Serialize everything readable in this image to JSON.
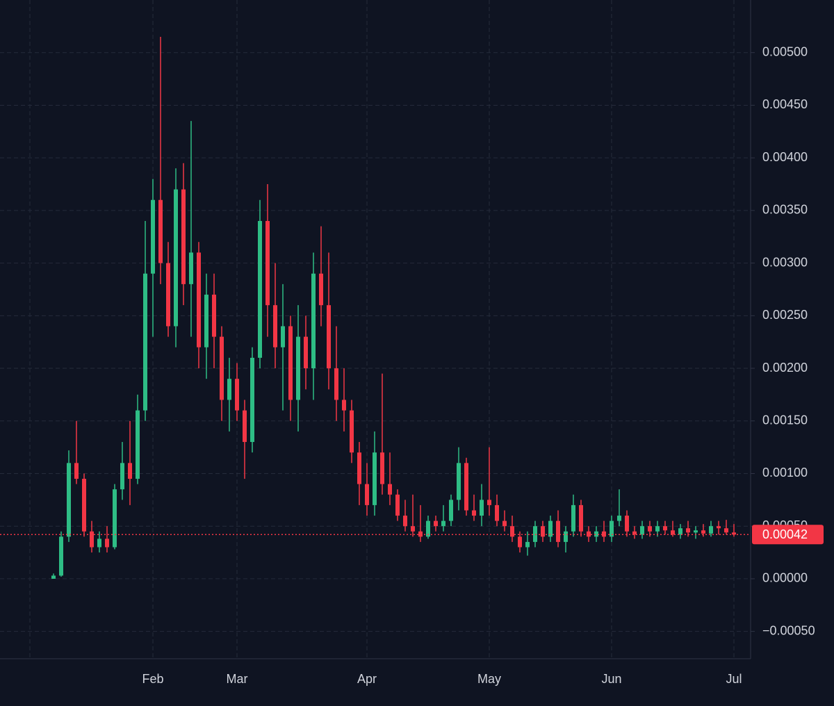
{
  "chart_data": {
    "type": "candlestick",
    "categories": [
      null,
      null,
      null,
      null,
      null,
      null,
      null,
      null,
      null,
      null,
      null,
      null,
      null,
      "Feb",
      null,
      null,
      null,
      null,
      null,
      null,
      null,
      null,
      null,
      null,
      "Mar",
      null,
      null,
      null,
      null,
      null,
      null,
      null,
      null,
      null,
      null,
      null,
      null,
      null,
      null,
      null,
      null,
      "Apr",
      null,
      null,
      null,
      null,
      null,
      null,
      null,
      null,
      null,
      null,
      null,
      null,
      null,
      null,
      null,
      "May",
      null,
      null,
      null,
      null,
      null,
      null,
      null,
      null,
      null,
      null,
      null,
      null,
      null,
      null,
      null,
      "Jun",
      null,
      null,
      null,
      null,
      null,
      null,
      null,
      null,
      null,
      null,
      null,
      null,
      null,
      null,
      null,
      "Jul"
    ],
    "open": [
      0,
      3e-05,
      0.0004,
      0.0011,
      0.00095,
      0.00045,
      0.0003,
      0.00038,
      0.0003,
      0.00085,
      0.0011,
      0.00095,
      0.0016,
      0.0029,
      0.0036,
      0.003,
      0.0024,
      0.0037,
      0.0028,
      0.0031,
      0.0022,
      0.0027,
      0.0023,
      0.0017,
      0.0019,
      0.0016,
      0.0013,
      0.0021,
      0.0034,
      0.0026,
      0.0022,
      0.0024,
      0.0017,
      0.0023,
      0.002,
      0.0029,
      0.0026,
      0.002,
      0.0017,
      0.0016,
      0.0012,
      0.0009,
      0.0007,
      0.0012,
      0.0009,
      0.0008,
      0.0006,
      0.0005,
      0.00045,
      0.0004,
      0.00055,
      0.0005,
      0.00055,
      0.00075,
      0.0011,
      0.00065,
      0.0006,
      0.00075,
      0.0007,
      0.00055,
      0.0005,
      0.0004,
      0.0003,
      0.00035,
      0.0005,
      0.0004,
      0.00055,
      0.00035,
      0.00045,
      0.0007,
      0.00045,
      0.0004,
      0.00045,
      0.0004,
      0.00055,
      0.0006,
      0.00045,
      0.00042,
      0.0005,
      0.00045,
      0.0005,
      0.00046,
      0.00042,
      0.00048,
      0.00044,
      0.00046,
      0.00043,
      0.0005,
      0.00048,
      0.00044
    ],
    "high": [
      5e-05,
      0.00045,
      0.00122,
      0.0015,
      0.001,
      0.00055,
      0.00045,
      0.0005,
      0.0009,
      0.0013,
      0.0015,
      0.00175,
      0.0034,
      0.0038,
      0.00515,
      0.0032,
      0.0039,
      0.00395,
      0.00435,
      0.0032,
      0.0029,
      0.0029,
      0.0024,
      0.0021,
      0.00205,
      0.0017,
      0.0022,
      0.0036,
      0.00375,
      0.003,
      0.0028,
      0.0025,
      0.0026,
      0.0025,
      0.0031,
      0.00335,
      0.0031,
      0.0024,
      0.002,
      0.0017,
      0.0013,
      0.0011,
      0.0014,
      0.00195,
      0.0012,
      0.00085,
      0.00075,
      0.0008,
      0.0007,
      0.0006,
      0.0006,
      0.0007,
      0.0008,
      0.00125,
      0.00115,
      0.0008,
      0.0009,
      0.00125,
      0.0008,
      0.00065,
      0.0006,
      0.00045,
      0.00045,
      0.00055,
      0.00055,
      0.0006,
      0.00065,
      0.0005,
      0.0008,
      0.00075,
      0.0005,
      0.0005,
      0.00055,
      0.0006,
      0.00085,
      0.00065,
      0.0005,
      0.00055,
      0.00055,
      0.00055,
      0.00055,
      0.00055,
      0.00052,
      0.00055,
      0.0005,
      0.00052,
      0.00055,
      0.00055,
      0.00056,
      0.00052
    ],
    "low": [
      0,
      2e-05,
      0.00035,
      0.0009,
      0.0004,
      0.00025,
      0.00025,
      0.00025,
      0.00028,
      0.00075,
      0.0007,
      0.0009,
      0.0015,
      0.0023,
      0.0028,
      0.0023,
      0.0022,
      0.0026,
      0.0023,
      0.002,
      0.0019,
      0.002,
      0.0015,
      0.0014,
      0.0015,
      0.00095,
      0.0012,
      0.002,
      0.0023,
      0.002,
      0.0016,
      0.0015,
      0.0014,
      0.0018,
      0.0017,
      0.0024,
      0.0018,
      0.0015,
      0.0014,
      0.0011,
      0.0007,
      0.0006,
      0.0006,
      0.0008,
      0.0007,
      0.00055,
      0.00045,
      0.0004,
      0.00035,
      0.00038,
      0.00045,
      0.00045,
      0.0005,
      0.00065,
      0.0006,
      0.00055,
      0.0005,
      0.0006,
      0.0005,
      0.00045,
      0.00035,
      0.00025,
      0.00022,
      0.0003,
      0.00035,
      0.00035,
      0.0003,
      0.00025,
      0.0004,
      0.0004,
      0.00035,
      0.00035,
      0.00035,
      0.00035,
      0.0005,
      0.0004,
      0.00038,
      0.00038,
      0.0004,
      0.0004,
      0.00042,
      0.0004,
      0.00038,
      0.0004,
      0.00038,
      0.0004,
      0.0004,
      0.00042,
      0.00042,
      0.0004
    ],
    "close": [
      3e-05,
      0.0004,
      0.0011,
      0.00095,
      0.00045,
      0.0003,
      0.00038,
      0.0003,
      0.00085,
      0.0011,
      0.00095,
      0.0016,
      0.0029,
      0.0036,
      0.003,
      0.0024,
      0.0037,
      0.0028,
      0.0031,
      0.0022,
      0.0027,
      0.0023,
      0.0017,
      0.0019,
      0.0016,
      0.0013,
      0.0021,
      0.0034,
      0.0026,
      0.0022,
      0.0024,
      0.0017,
      0.0023,
      0.002,
      0.0029,
      0.0026,
      0.002,
      0.0017,
      0.0016,
      0.0012,
      0.0009,
      0.0007,
      0.0012,
      0.0009,
      0.0008,
      0.0006,
      0.0005,
      0.00045,
      0.0004,
      0.00055,
      0.0005,
      0.00055,
      0.00075,
      0.0011,
      0.00065,
      0.0006,
      0.00075,
      0.0007,
      0.00055,
      0.0005,
      0.0004,
      0.0003,
      0.00035,
      0.0005,
      0.0004,
      0.00055,
      0.00035,
      0.00045,
      0.0007,
      0.00045,
      0.0004,
      0.00045,
      0.0004,
      0.00055,
      0.0006,
      0.00045,
      0.00042,
      0.0005,
      0.00045,
      0.0005,
      0.00046,
      0.00042,
      0.00048,
      0.00044,
      0.00046,
      0.00043,
      0.0005,
      0.00048,
      0.00044,
      0.00042
    ],
    "up_color": "#2ebd85",
    "down_color": "#f23645",
    "ylim": [
      -0.00076,
      0.0055
    ],
    "yticks": [
      {
        "value": -0.0005,
        "label": "−0.00050"
      },
      {
        "value": 0,
        "label": "0.00000"
      },
      {
        "value": 0.0005,
        "label": "0.00050"
      },
      {
        "value": 0.001,
        "label": "0.00100"
      },
      {
        "value": 0.0015,
        "label": "0.00150"
      },
      {
        "value": 0.002,
        "label": "0.00200"
      },
      {
        "value": 0.0025,
        "label": "0.00250"
      },
      {
        "value": 0.003,
        "label": "0.00300"
      },
      {
        "value": 0.0035,
        "label": "0.00350"
      },
      {
        "value": 0.004,
        "label": "0.00400"
      },
      {
        "value": 0.0045,
        "label": "0.00450"
      },
      {
        "value": 0.005,
        "label": "0.00500"
      }
    ],
    "grid": true,
    "last_price": 0.00042,
    "last_price_color": "#f23645"
  }
}
